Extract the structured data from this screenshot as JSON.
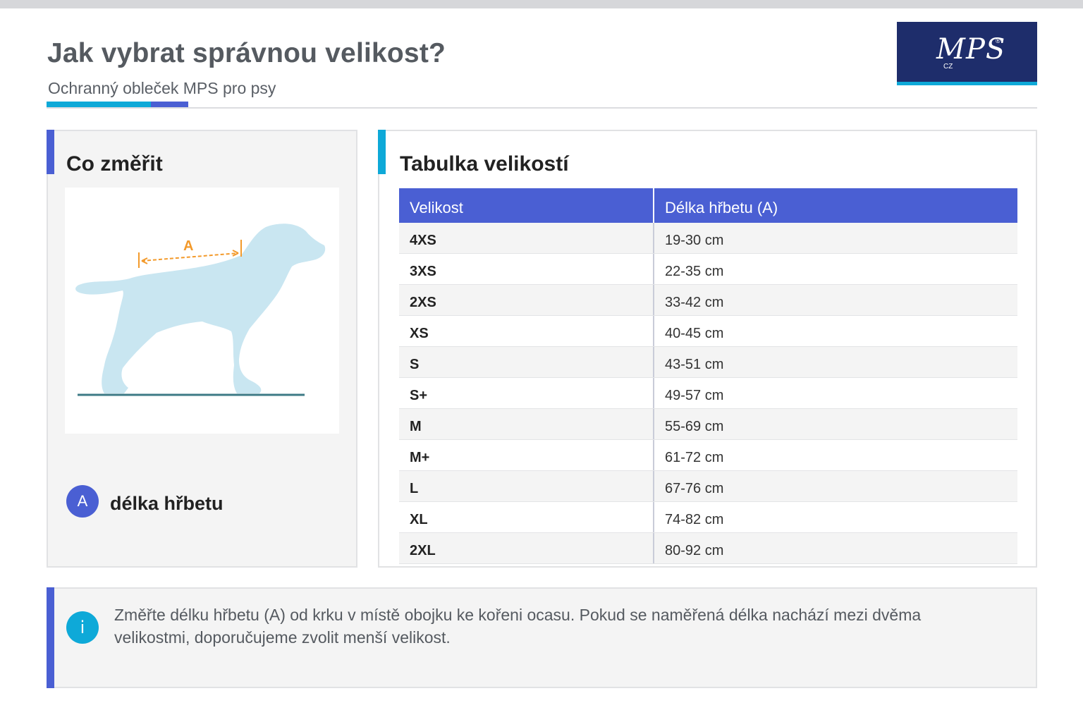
{
  "header": {
    "title": "Jak vybrat správnou velikost?",
    "subtitle": "Ochranný obleček MPS pro psy"
  },
  "logo": {
    "text": "MPS",
    "registered_mark": "®",
    "small_text": "CZ"
  },
  "measure_panel": {
    "title": "Co změřit",
    "diagram_label": "A",
    "legend": [
      {
        "badge": "A",
        "label": "délka hřbetu"
      }
    ]
  },
  "size_table": {
    "title": "Tabulka velikostí",
    "columns": [
      "Velikost",
      "Délka hřbetu (A)"
    ],
    "rows": [
      [
        "4XS",
        "19-30 cm"
      ],
      [
        "3XS",
        "22-35 cm"
      ],
      [
        "2XS",
        "33-42 cm"
      ],
      [
        "XS",
        "40-45 cm"
      ],
      [
        "S",
        "43-51 cm"
      ],
      [
        "S+",
        "49-57 cm"
      ],
      [
        "M",
        "55-69 cm"
      ],
      [
        "M+",
        "61-72 cm"
      ],
      [
        "L",
        "67-76 cm"
      ],
      [
        "XL",
        "74-82 cm"
      ],
      [
        "2XL",
        "80-92 cm"
      ]
    ]
  },
  "info": {
    "icon": "info-icon",
    "badge": "i",
    "text": "Změřte délku hřbetu (A) od krku v místě obojku ke kořeni ocasu. Pokud se naměřená délka nachází mezi dvěma velikostmi, doporučujeme zvolit menší velikost."
  },
  "colors": {
    "primary_blue": "#4a5fd3",
    "accent_cyan": "#0ea9d8",
    "logo_navy": "#1e2d6b",
    "dog_fill": "#c9e6f1",
    "measure_orange": "#f39a2b"
  }
}
